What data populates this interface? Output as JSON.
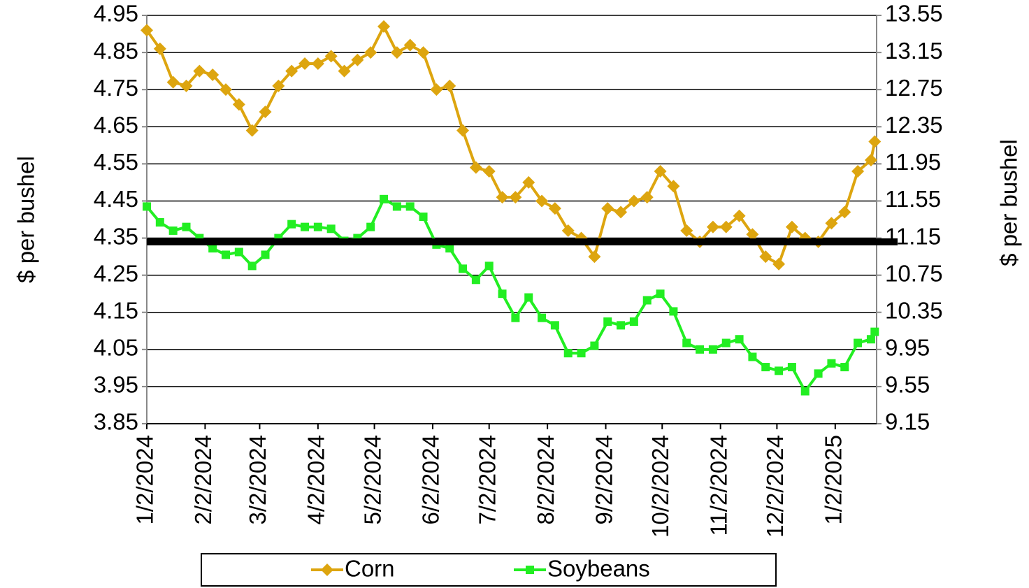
{
  "chart_data": {
    "type": "line",
    "x": [
      "1/2/2024",
      "1/9/2024",
      "1/16/2024",
      "1/23/2024",
      "1/30/2024",
      "2/6/2024",
      "2/13/2024",
      "2/20/2024",
      "2/27/2024",
      "3/5/2024",
      "3/12/2024",
      "3/19/2024",
      "3/26/2024",
      "4/2/2024",
      "4/9/2024",
      "4/16/2024",
      "4/23/2024",
      "4/30/2024",
      "5/7/2024",
      "5/14/2024",
      "5/21/2024",
      "5/28/2024",
      "6/4/2024",
      "6/11/2024",
      "6/18/2024",
      "6/25/2024",
      "7/2/2024",
      "7/9/2024",
      "7/16/2024",
      "7/23/2024",
      "7/30/2024",
      "8/6/2024",
      "8/13/2024",
      "8/20/2024",
      "8/27/2024",
      "9/3/2024",
      "9/10/2024",
      "9/17/2024",
      "9/24/2024",
      "10/1/2024",
      "10/8/2024",
      "10/15/2024",
      "10/22/2024",
      "10/29/2024",
      "11/5/2024",
      "11/12/2024",
      "11/19/2024",
      "11/26/2024",
      "12/3/2024",
      "12/10/2024",
      "12/17/2024",
      "12/24/2024",
      "12/31/2024",
      "1/7/2025",
      "1/14/2025",
      "1/21/2025",
      "1/23/2025"
    ],
    "series": [
      {
        "name": "Corn",
        "color": "#DDA50F",
        "marker": "diamond",
        "axis": "y",
        "values": [
          4.91,
          4.86,
          4.77,
          4.76,
          4.8,
          4.79,
          4.75,
          4.71,
          4.64,
          4.69,
          4.76,
          4.8,
          4.82,
          4.82,
          4.84,
          4.8,
          4.83,
          4.85,
          4.92,
          4.85,
          4.87,
          4.85,
          4.75,
          4.76,
          4.64,
          4.54,
          4.53,
          4.46,
          4.46,
          4.5,
          4.45,
          4.43,
          4.37,
          4.35,
          4.3,
          4.43,
          4.42,
          4.45,
          4.46,
          4.53,
          4.49,
          4.37,
          4.34,
          4.38,
          4.38,
          4.41,
          4.36,
          4.3,
          4.28,
          4.38,
          4.35,
          4.34,
          4.39,
          4.42,
          4.53,
          4.56,
          4.61
        ]
      },
      {
        "name": "Soybeans",
        "color": "#22EE22",
        "marker": "square",
        "axis": "y2",
        "values": [
          11.49,
          11.32,
          11.23,
          11.27,
          11.15,
          11.04,
          10.97,
          11.0,
          10.85,
          10.97,
          11.15,
          11.3,
          11.27,
          11.27,
          11.25,
          11.12,
          11.15,
          11.27,
          11.57,
          11.49,
          11.49,
          11.38,
          11.08,
          11.04,
          10.82,
          10.7,
          10.85,
          10.55,
          10.29,
          10.51,
          10.29,
          10.21,
          9.91,
          9.91,
          9.99,
          10.25,
          10.21,
          10.25,
          10.48,
          10.55,
          10.36,
          10.02,
          9.95,
          9.95,
          10.02,
          10.06,
          9.87,
          9.76,
          9.72,
          9.76,
          9.5,
          9.69,
          9.8,
          9.76,
          10.02,
          10.06,
          10.14
        ]
      }
    ],
    "ylabel": "$ per bushel",
    "y2label": "$ per bushel",
    "xlim": [
      "1/2/2024",
      "1/24/2025"
    ],
    "xticks": [
      "1/2/2024",
      "2/2/2024",
      "3/2/2024",
      "4/2/2024",
      "5/2/2024",
      "6/2/2024",
      "7/2/2024",
      "8/2/2024",
      "9/2/2024",
      "10/2/2024",
      "11/2/2024",
      "12/2/2024",
      "1/2/2025"
    ],
    "ylim": [
      3.85,
      4.95
    ],
    "yticks": [
      3.85,
      3.95,
      4.05,
      4.15,
      4.25,
      4.35,
      4.45,
      4.55,
      4.65,
      4.75,
      4.85,
      4.95
    ],
    "y2lim": [
      9.15,
      13.55
    ],
    "y2ticks": [
      9.15,
      9.55,
      9.95,
      10.35,
      10.75,
      11.15,
      11.55,
      11.95,
      12.35,
      12.75,
      13.15,
      13.55
    ],
    "reference_line": {
      "value": 4.34,
      "color": "#000000"
    },
    "grid": true,
    "legend": "bottom"
  }
}
